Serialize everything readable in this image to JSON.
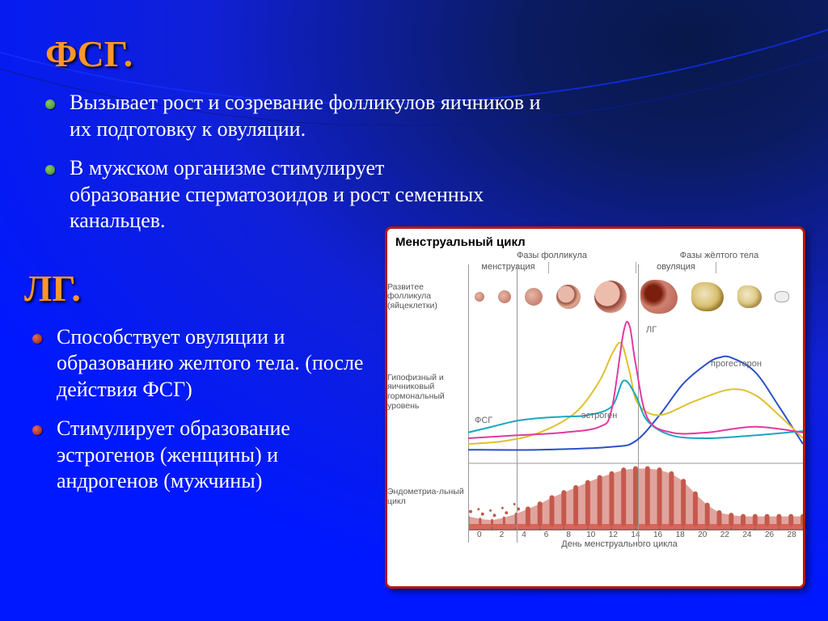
{
  "heading_fsg": "ФСГ.",
  "heading_lg": "ЛГ.",
  "fsg_bullets": [
    "Вызывает рост и созревание фолликулов яичников и их подготовку к овуляции.",
    "В мужском организме стимулирует образование сперматозоидов и рост семенных канальцев."
  ],
  "lg_bullets": [
    "Способствует овуляции и образованию желтого тела. (после действия ФСГ)",
    "Стимулирует образование эстрогенов (женщины) и андрогенов (мужчины)"
  ],
  "colors": {
    "heading": "#ff9626",
    "bg_outer": "#0018ff",
    "bg_inner": "#08184a",
    "frame": "#b11b0d",
    "fsh": "#1aa6c0",
    "lh": "#e03aa0",
    "estrogen": "#e0c030",
    "progesterone": "#2a50c8",
    "endometrium": "#c4594c",
    "endometrium_base": "#d8655a",
    "grid": "#cccccc",
    "text_muted": "#555555"
  },
  "chart": {
    "title": "Менструальный цикл",
    "phase_follicle": "Фазы фолликула",
    "phase_luteal": "Фазы жёлтого тела",
    "sub_menstruation": "менструация",
    "sub_ovulation": "овуляция",
    "row_follicle_dev": "Развитее фолликула (яйцеклетки)",
    "row_hormone": "Гипофизный и яичниковый гормональный уровень",
    "row_endo": "Эндометриа-льный цикл",
    "xlabel": "День менструального цикла",
    "label_fsh": "ФСГ",
    "label_lh": "ЛГ",
    "label_estrogen": "эстроген",
    "label_progesterone": "прогестерон",
    "days": [
      "0",
      "2",
      "4",
      "6",
      "8",
      "10",
      "12",
      "14",
      "16",
      "18",
      "20",
      "22",
      "24",
      "26",
      "28"
    ],
    "x_domain": [
      0,
      28
    ],
    "y_domain": [
      0,
      100
    ],
    "ovulation_day": 14,
    "menstruation_end_day": 4,
    "series": {
      "fsh": [
        [
          0,
          22
        ],
        [
          2,
          26
        ],
        [
          4,
          30
        ],
        [
          6,
          32
        ],
        [
          8,
          33
        ],
        [
          10,
          34
        ],
        [
          12,
          40
        ],
        [
          13,
          58
        ],
        [
          14,
          48
        ],
        [
          15,
          30
        ],
        [
          17,
          20
        ],
        [
          20,
          18
        ],
        [
          24,
          20
        ],
        [
          28,
          23
        ]
      ],
      "lh": [
        [
          0,
          18
        ],
        [
          4,
          20
        ],
        [
          8,
          22
        ],
        [
          11,
          26
        ],
        [
          12,
          38
        ],
        [
          13,
          92
        ],
        [
          13.5,
          96
        ],
        [
          14,
          70
        ],
        [
          15,
          32
        ],
        [
          17,
          22
        ],
        [
          20,
          22
        ],
        [
          24,
          26
        ],
        [
          28,
          22
        ]
      ],
      "estrogen": [
        [
          0,
          14
        ],
        [
          3,
          16
        ],
        [
          6,
          22
        ],
        [
          9,
          36
        ],
        [
          11,
          58
        ],
        [
          12,
          76
        ],
        [
          12.8,
          84
        ],
        [
          13.5,
          64
        ],
        [
          14.2,
          42
        ],
        [
          16,
          34
        ],
        [
          19,
          44
        ],
        [
          22,
          52
        ],
        [
          24,
          48
        ],
        [
          26,
          34
        ],
        [
          28,
          18
        ]
      ],
      "progesterone": [
        [
          0,
          10
        ],
        [
          6,
          10
        ],
        [
          12,
          12
        ],
        [
          14,
          16
        ],
        [
          16,
          34
        ],
        [
          18,
          56
        ],
        [
          20,
          70
        ],
        [
          21,
          74
        ],
        [
          22,
          74
        ],
        [
          24,
          64
        ],
        [
          26,
          40
        ],
        [
          28,
          14
        ]
      ]
    },
    "endometrium_heights": [
      12,
      8,
      6,
      10,
      16,
      24,
      32,
      42,
      50,
      58,
      66,
      74,
      80,
      86,
      88,
      88,
      86,
      80,
      68,
      48,
      30,
      18,
      14,
      12,
      12,
      12,
      12,
      12,
      12
    ],
    "line_width": 2,
    "title_fontsize": 15,
    "label_fontsize": 11
  }
}
